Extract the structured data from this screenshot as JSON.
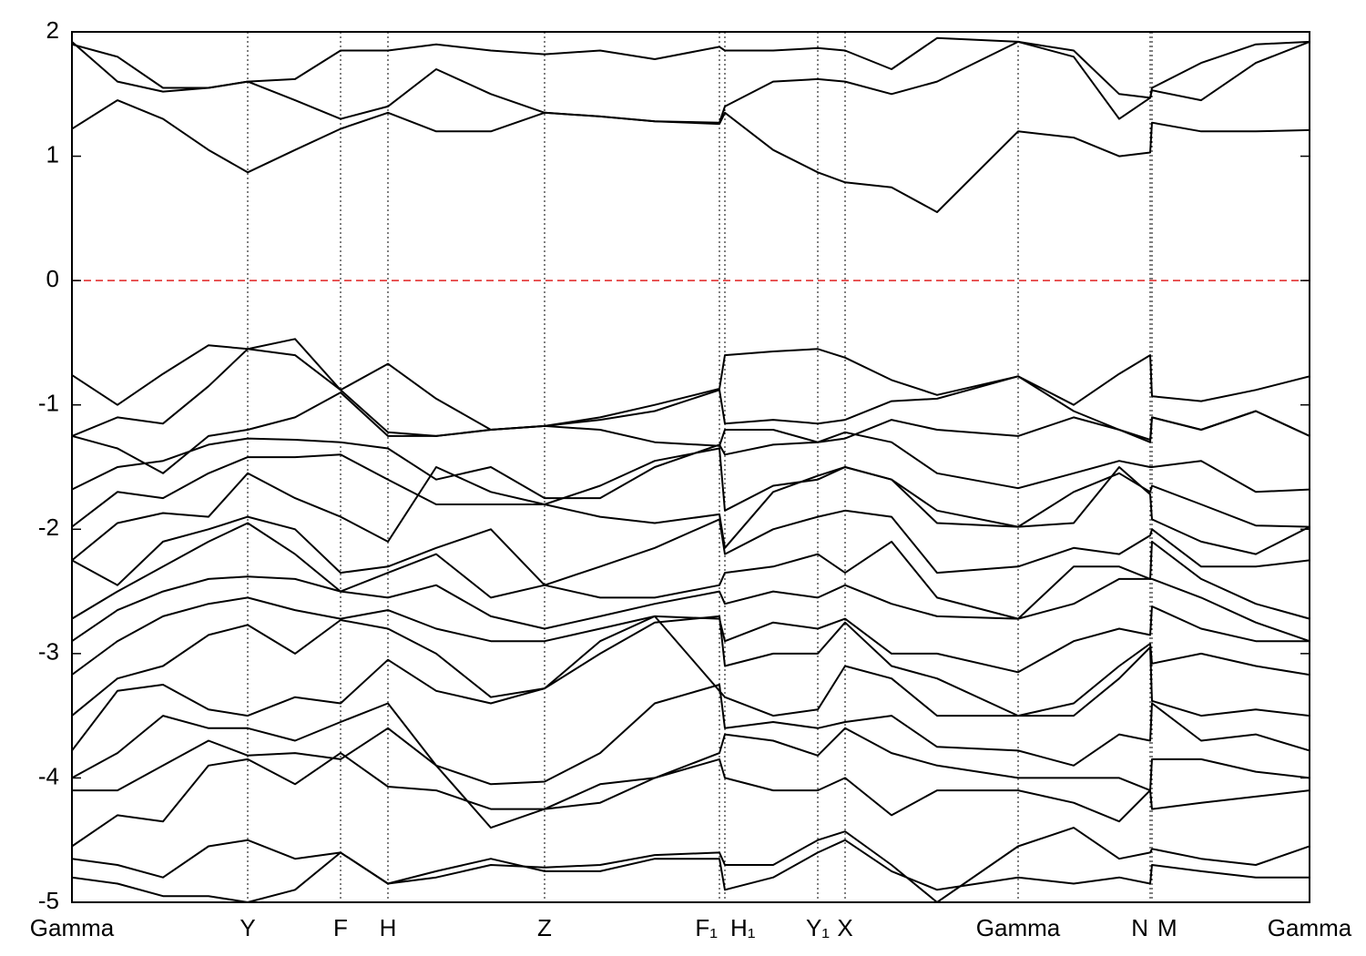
{
  "chart_data": {
    "type": "line",
    "x": [
      0,
      0.5,
      1.0,
      1.5,
      1.93,
      2.45,
      2.95,
      3.47,
      4.0,
      4.6,
      5.19,
      5.8,
      6.4,
      7.11,
      7.17,
      7.7,
      8.19,
      8.49,
      9.0,
      9.5,
      10.39,
      11.0,
      11.5,
      11.84,
      11.86,
      12.4,
      13.0,
      13.59
    ],
    "xlim": [
      0,
      13.59
    ],
    "xticks": [
      {
        "value": 0,
        "label": "Gamma"
      },
      {
        "value": 1.93,
        "label": "Y"
      },
      {
        "value": 2.95,
        "label": "F"
      },
      {
        "value": 3.47,
        "label": "H"
      },
      {
        "value": 5.19,
        "label": "Z"
      },
      {
        "value": 7.11,
        "label": "F₁"
      },
      {
        "value": 7.17,
        "label": "H₁"
      },
      {
        "value": 8.19,
        "label": "Y₁"
      },
      {
        "value": 8.49,
        "label": "X"
      },
      {
        "value": 10.39,
        "label": "Gamma"
      },
      {
        "value": 11.84,
        "label": "N"
      },
      {
        "value": 11.86,
        "label": "M"
      },
      {
        "value": 13.59,
        "label": "Gamma"
      }
    ],
    "ylim": [
      -5,
      2
    ],
    "yticks": [
      2,
      1,
      0,
      -1,
      -2,
      -3,
      -4,
      -5
    ],
    "reference_line": {
      "value": 0,
      "color": "#e02020"
    },
    "vertical_grid": true,
    "series": [
      {
        "color": "#000000",
        "values": [
          1.22,
          1.45,
          1.3,
          1.05,
          0.87,
          1.05,
          1.22,
          1.35,
          1.2,
          1.2,
          1.35,
          1.32,
          1.28,
          1.26,
          1.35,
          1.05,
          0.87,
          0.79,
          0.75,
          0.55,
          1.2,
          1.15,
          1.0,
          1.03,
          1.27,
          1.2,
          1.2,
          1.21
        ]
      },
      {
        "color": "#000000",
        "values": [
          1.92,
          1.6,
          1.52,
          1.55,
          1.6,
          1.45,
          1.3,
          1.4,
          1.7,
          1.5,
          1.35,
          1.32,
          1.28,
          1.27,
          1.4,
          1.6,
          1.62,
          1.6,
          1.5,
          1.6,
          1.92,
          1.8,
          1.3,
          1.47,
          1.53,
          1.45,
          1.75,
          1.92
        ]
      },
      {
        "color": "#000000",
        "values": [
          1.9,
          1.8,
          1.55,
          1.55,
          1.6,
          1.62,
          1.85,
          1.85,
          1.9,
          1.85,
          1.82,
          1.85,
          1.78,
          1.88,
          1.85,
          1.85,
          1.87,
          1.85,
          1.7,
          1.95,
          1.92,
          1.85,
          1.5,
          1.47,
          1.55,
          1.75,
          1.9,
          1.92
        ]
      },
      {
        "color": "#000000",
        "values": [
          -0.76,
          -1.0,
          -0.75,
          -0.52,
          -0.55,
          -0.47,
          -0.88,
          -1.22,
          -1.25,
          -1.2,
          -1.17,
          -1.1,
          -1.0,
          -0.87,
          -0.6,
          -0.57,
          -0.55,
          -0.62,
          -0.8,
          -0.92,
          -0.77,
          -1.0,
          -0.75,
          -0.6,
          -0.93,
          -0.97,
          -0.88,
          -0.77
        ]
      },
      {
        "color": "#000000",
        "values": [
          -1.25,
          -1.1,
          -1.15,
          -0.85,
          -0.55,
          -0.6,
          -0.88,
          -0.67,
          -0.95,
          -1.2,
          -1.17,
          -1.12,
          -1.05,
          -0.88,
          -1.15,
          -1.12,
          -1.15,
          -1.12,
          -0.97,
          -0.95,
          -0.77,
          -1.05,
          -1.2,
          -1.28,
          -1.1,
          -1.2,
          -1.05,
          -1.25
        ]
      },
      {
        "color": "#000000",
        "values": [
          -1.25,
          -1.35,
          -1.55,
          -1.25,
          -1.2,
          -1.1,
          -0.9,
          -1.25,
          -1.25,
          -1.2,
          -1.17,
          -1.2,
          -1.3,
          -1.33,
          -1.2,
          -1.2,
          -1.3,
          -1.27,
          -1.12,
          -1.2,
          -1.25,
          -1.1,
          -1.2,
          -1.3,
          -1.1,
          -1.2,
          -1.05,
          -1.25
        ]
      },
      {
        "color": "#000000",
        "values": [
          -1.68,
          -1.5,
          -1.45,
          -1.32,
          -1.27,
          -1.28,
          -1.3,
          -1.35,
          -1.6,
          -1.5,
          -1.75,
          -1.75,
          -1.5,
          -1.32,
          -1.4,
          -1.32,
          -1.3,
          -1.22,
          -1.3,
          -1.55,
          -1.67,
          -1.55,
          -1.45,
          -1.5,
          -1.5,
          -1.45,
          -1.7,
          -1.68
        ]
      },
      {
        "color": "#000000",
        "values": [
          -1.98,
          -1.7,
          -1.75,
          -1.55,
          -1.42,
          -1.42,
          -1.4,
          -1.6,
          -1.8,
          -1.8,
          -1.8,
          -1.65,
          -1.45,
          -1.35,
          -1.85,
          -1.65,
          -1.6,
          -1.5,
          -1.6,
          -1.85,
          -1.98,
          -1.7,
          -1.55,
          -1.7,
          -1.65,
          -1.8,
          -1.97,
          -1.98
        ]
      },
      {
        "color": "#000000",
        "values": [
          -2.25,
          -1.95,
          -1.87,
          -1.9,
          -1.55,
          -1.75,
          -1.9,
          -2.1,
          -1.5,
          -1.7,
          -1.8,
          -1.9,
          -1.95,
          -1.88,
          -2.15,
          -1.7,
          -1.57,
          -1.5,
          -1.6,
          -1.95,
          -1.98,
          -1.95,
          -1.5,
          -1.72,
          -1.92,
          -2.1,
          -2.2,
          -1.98
        ]
      },
      {
        "color": "#000000",
        "values": [
          -2.25,
          -2.45,
          -2.1,
          -2.0,
          -1.9,
          -2.0,
          -2.35,
          -2.3,
          -2.15,
          -2.0,
          -2.45,
          -2.3,
          -2.15,
          -1.92,
          -2.2,
          -2.0,
          -1.9,
          -1.85,
          -1.9,
          -2.35,
          -2.3,
          -2.15,
          -2.2,
          -2.05,
          -2.0,
          -2.3,
          -2.3,
          -2.25
        ]
      },
      {
        "color": "#000000",
        "values": [
          -2.72,
          -2.5,
          -2.3,
          -2.1,
          -1.95,
          -2.2,
          -2.5,
          -2.35,
          -2.2,
          -2.55,
          -2.45,
          -2.55,
          -2.55,
          -2.45,
          -2.35,
          -2.3,
          -2.2,
          -2.35,
          -2.1,
          -2.55,
          -2.72,
          -2.3,
          -2.3,
          -2.4,
          -2.1,
          -2.4,
          -2.6,
          -2.72
        ]
      },
      {
        "color": "#000000",
        "values": [
          -2.9,
          -2.65,
          -2.5,
          -2.4,
          -2.38,
          -2.4,
          -2.5,
          -2.55,
          -2.45,
          -2.7,
          -2.8,
          -2.7,
          -2.6,
          -2.5,
          -2.6,
          -2.5,
          -2.55,
          -2.45,
          -2.6,
          -2.7,
          -2.72,
          -2.6,
          -2.4,
          -2.4,
          -2.4,
          -2.55,
          -2.75,
          -2.9
        ]
      },
      {
        "color": "#000000",
        "values": [
          -3.17,
          -2.9,
          -2.7,
          -2.6,
          -2.55,
          -2.65,
          -2.72,
          -2.65,
          -2.8,
          -2.9,
          -2.9,
          -2.8,
          -2.7,
          -2.72,
          -2.9,
          -2.75,
          -2.8,
          -2.72,
          -3.0,
          -3.0,
          -3.15,
          -2.9,
          -2.8,
          -2.85,
          -2.62,
          -2.8,
          -2.9,
          -2.9
        ]
      },
      {
        "color": "#000000",
        "values": [
          -3.5,
          -3.2,
          -3.1,
          -2.85,
          -2.77,
          -3.0,
          -2.73,
          -2.8,
          -3.0,
          -3.35,
          -3.28,
          -3.0,
          -2.75,
          -2.7,
          -3.1,
          -3.0,
          -3.0,
          -2.75,
          -3.1,
          -3.2,
          -3.5,
          -3.4,
          -3.1,
          -2.92,
          -3.08,
          -3.0,
          -3.1,
          -3.17
        ]
      },
      {
        "color": "#000000",
        "values": [
          -3.78,
          -3.3,
          -3.25,
          -3.45,
          -3.5,
          -3.35,
          -3.4,
          -3.05,
          -3.3,
          -3.4,
          -3.28,
          -2.9,
          -2.7,
          -3.3,
          -3.35,
          -3.5,
          -3.45,
          -3.1,
          -3.2,
          -3.5,
          -3.5,
          -3.5,
          -3.2,
          -2.95,
          -3.38,
          -3.5,
          -3.45,
          -3.5
        ]
      },
      {
        "color": "#000000",
        "values": [
          -4.0,
          -3.8,
          -3.5,
          -3.6,
          -3.6,
          -3.7,
          -3.55,
          -3.4,
          -3.9,
          -4.05,
          -4.03,
          -3.8,
          -3.4,
          -3.25,
          -3.6,
          -3.55,
          -3.6,
          -3.55,
          -3.5,
          -3.75,
          -3.78,
          -3.9,
          -3.65,
          -3.7,
          -3.4,
          -3.7,
          -3.65,
          -3.78
        ]
      },
      {
        "color": "#000000",
        "values": [
          -4.1,
          -4.1,
          -3.9,
          -3.7,
          -3.82,
          -3.8,
          -3.85,
          -3.6,
          -3.9,
          -4.4,
          -4.25,
          -4.05,
          -4.0,
          -3.8,
          -3.65,
          -3.7,
          -3.82,
          -3.6,
          -3.8,
          -3.9,
          -4.0,
          -4.0,
          -4.0,
          -4.1,
          -3.85,
          -3.85,
          -3.95,
          -4.0
        ]
      },
      {
        "color": "#000000",
        "values": [
          -4.55,
          -4.3,
          -4.35,
          -3.9,
          -3.85,
          -4.05,
          -3.8,
          -4.07,
          -4.1,
          -4.25,
          -4.25,
          -4.2,
          -4.0,
          -3.85,
          -4.0,
          -4.1,
          -4.1,
          -4.0,
          -4.3,
          -4.1,
          -4.1,
          -4.2,
          -4.35,
          -4.1,
          -4.25,
          -4.2,
          -4.15,
          -4.1
        ]
      },
      {
        "color": "#000000",
        "values": [
          -4.65,
          -4.7,
          -4.8,
          -4.55,
          -4.5,
          -4.65,
          -4.6,
          -4.85,
          -4.8,
          -4.7,
          -4.72,
          -4.7,
          -4.62,
          -4.6,
          -4.7,
          -4.7,
          -4.5,
          -4.43,
          -4.7,
          -5.0,
          -4.55,
          -4.4,
          -4.65,
          -4.6,
          -4.57,
          -4.65,
          -4.7,
          -4.55
        ]
      },
      {
        "color": "#000000",
        "values": [
          -4.8,
          -4.85,
          -4.95,
          -4.95,
          -5.0,
          -4.9,
          -4.6,
          -4.85,
          -4.75,
          -4.65,
          -4.75,
          -4.75,
          -4.65,
          -4.65,
          -4.9,
          -4.8,
          -4.6,
          -4.5,
          -4.75,
          -4.9,
          -4.8,
          -4.85,
          -4.8,
          -4.85,
          -4.7,
          -4.75,
          -4.8,
          -4.8
        ]
      }
    ]
  }
}
